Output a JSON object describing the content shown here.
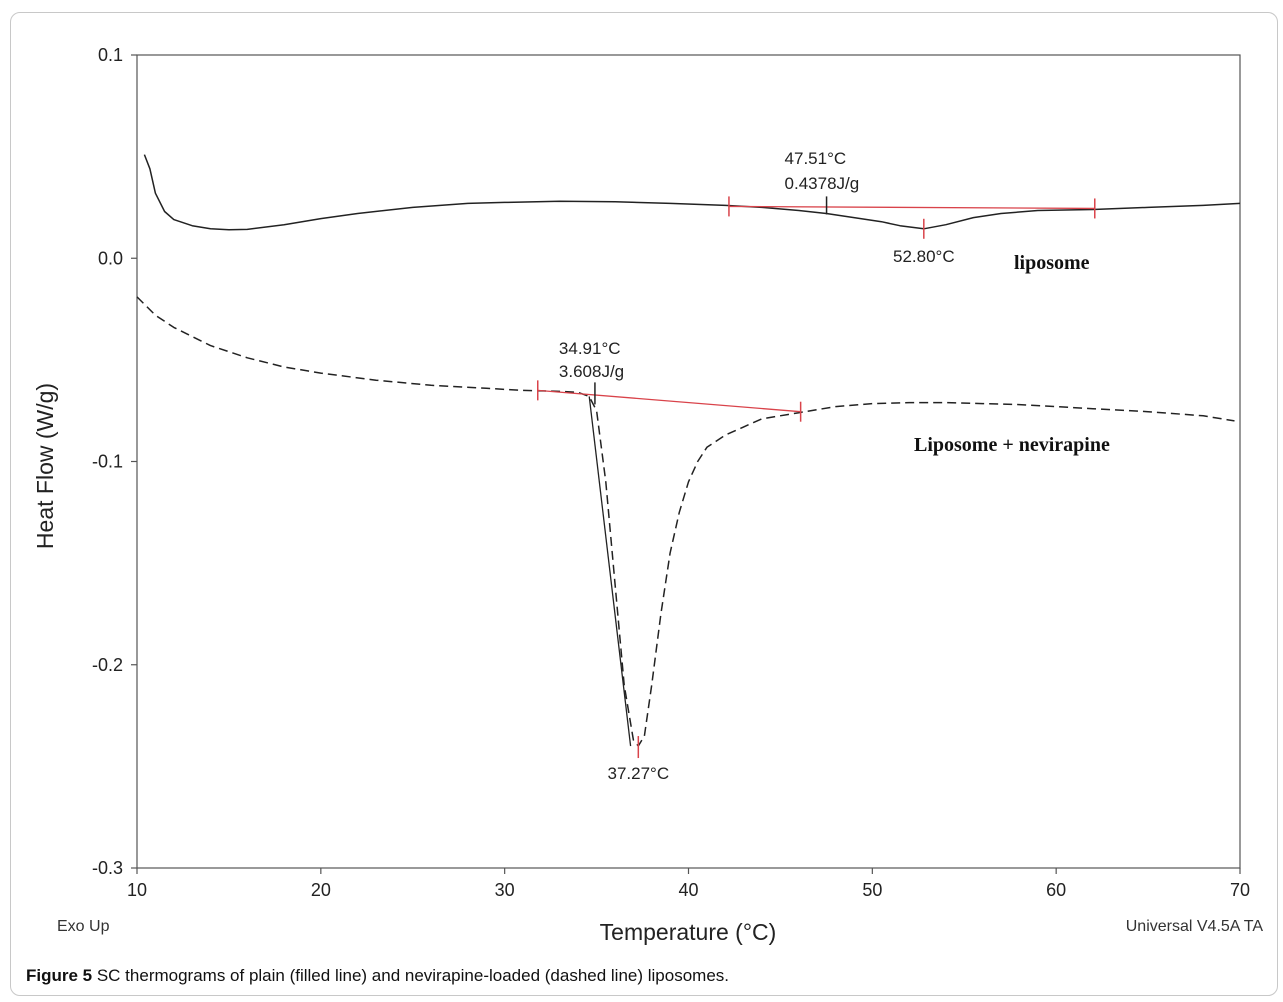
{
  "chart_data": {
    "type": "line",
    "xlabel": "Temperature (°C)",
    "ylabel": "Heat Flow (W/g)",
    "xlim": [
      10,
      70
    ],
    "ylim": [
      -0.3,
      0.1
    ],
    "x_ticks": [
      10,
      20,
      30,
      40,
      50,
      60,
      70
    ],
    "y_ticks": [
      0.1,
      0.0,
      -0.1,
      -0.2,
      -0.3
    ],
    "y_tick_labels": [
      "0.1",
      "0.0",
      "-0.1",
      "-0.2",
      "-0.3"
    ],
    "grid": false,
    "corner_left": "Exo Up",
    "corner_right": "Universal V4.5A TA",
    "series": [
      {
        "name": "liposome",
        "style": "solid",
        "x": [
          10.4,
          10.7,
          11.0,
          11.5,
          12.0,
          13.0,
          14.0,
          15.0,
          16.0,
          18.0,
          20.0,
          22.0,
          25.0,
          28.0,
          30.0,
          33.0,
          36.0,
          39.0,
          42.0,
          44.0,
          46.0,
          47.5,
          49.0,
          50.5,
          51.5,
          52.8,
          54.0,
          55.5,
          57.0,
          59.0,
          62.0,
          65.0,
          68.0,
          70.0
        ],
        "y": [
          0.051,
          0.044,
          0.032,
          0.023,
          0.019,
          0.016,
          0.0145,
          0.014,
          0.0142,
          0.0165,
          0.0195,
          0.022,
          0.025,
          0.027,
          0.0275,
          0.028,
          0.0278,
          0.027,
          0.026,
          0.025,
          0.0235,
          0.022,
          0.02,
          0.018,
          0.016,
          0.0145,
          0.0165,
          0.02,
          0.022,
          0.0235,
          0.024,
          0.025,
          0.026,
          0.027
        ]
      },
      {
        "name": "Liposome + nevirapine",
        "style": "dashed",
        "x": [
          10.0,
          11.0,
          12.0,
          14.0,
          16.0,
          18.0,
          20.0,
          23.0,
          26.0,
          29.0,
          31.0,
          33.0,
          34.0,
          34.6,
          35.0,
          35.5,
          36.0,
          36.5,
          37.0,
          37.27,
          37.6,
          38.0,
          38.5,
          39.0,
          39.5,
          40.0,
          40.5,
          41.0,
          42.0,
          43.0,
          44.0,
          46.0,
          48.0,
          50.0,
          52.0,
          54.0,
          56.0,
          58.0,
          60.0,
          62.0,
          65.0,
          68.0,
          69.7
        ],
        "y": [
          -0.019,
          -0.028,
          -0.034,
          -0.043,
          -0.049,
          -0.0535,
          -0.0565,
          -0.06,
          -0.0625,
          -0.064,
          -0.065,
          -0.0655,
          -0.066,
          -0.068,
          -0.075,
          -0.11,
          -0.16,
          -0.21,
          -0.237,
          -0.24,
          -0.235,
          -0.21,
          -0.175,
          -0.145,
          -0.125,
          -0.11,
          -0.1,
          -0.093,
          -0.087,
          -0.083,
          -0.079,
          -0.076,
          -0.073,
          -0.0715,
          -0.071,
          -0.071,
          -0.0715,
          -0.072,
          -0.073,
          -0.074,
          -0.0755,
          -0.0775,
          -0.08
        ]
      }
    ],
    "annotations": [
      {
        "x": 47.51,
        "y": 0.026,
        "label1": "47.51°C",
        "label2": "0.4378J/g"
      },
      {
        "x": 52.8,
        "y": 0.0145,
        "label1": "52.80°C"
      },
      {
        "x": 34.91,
        "y": -0.066,
        "label1": "34.91°C",
        "label2": "3.608J/g"
      },
      {
        "x": 37.27,
        "y": -0.24,
        "label1": "37.27°C"
      }
    ],
    "baselines": [
      {
        "x1": 42.2,
        "y1": 0.0255,
        "x2": 62.1,
        "y2": 0.0245,
        "color": "#d9434a"
      },
      {
        "x1": 31.8,
        "y1": -0.065,
        "x2": 46.1,
        "y2": -0.0755,
        "color": "#d9434a"
      }
    ],
    "series_labels": {
      "liposome": "liposome",
      "nevirapine": "Liposome + nevirapine"
    }
  },
  "caption": {
    "label": "Figure 5",
    "text": " SC thermograms of plain (filled line) and nevirapine-loaded (dashed line) liposomes."
  },
  "colors": {
    "curve": "#222222",
    "baseline": "#d9434a",
    "axis": "#555555"
  }
}
